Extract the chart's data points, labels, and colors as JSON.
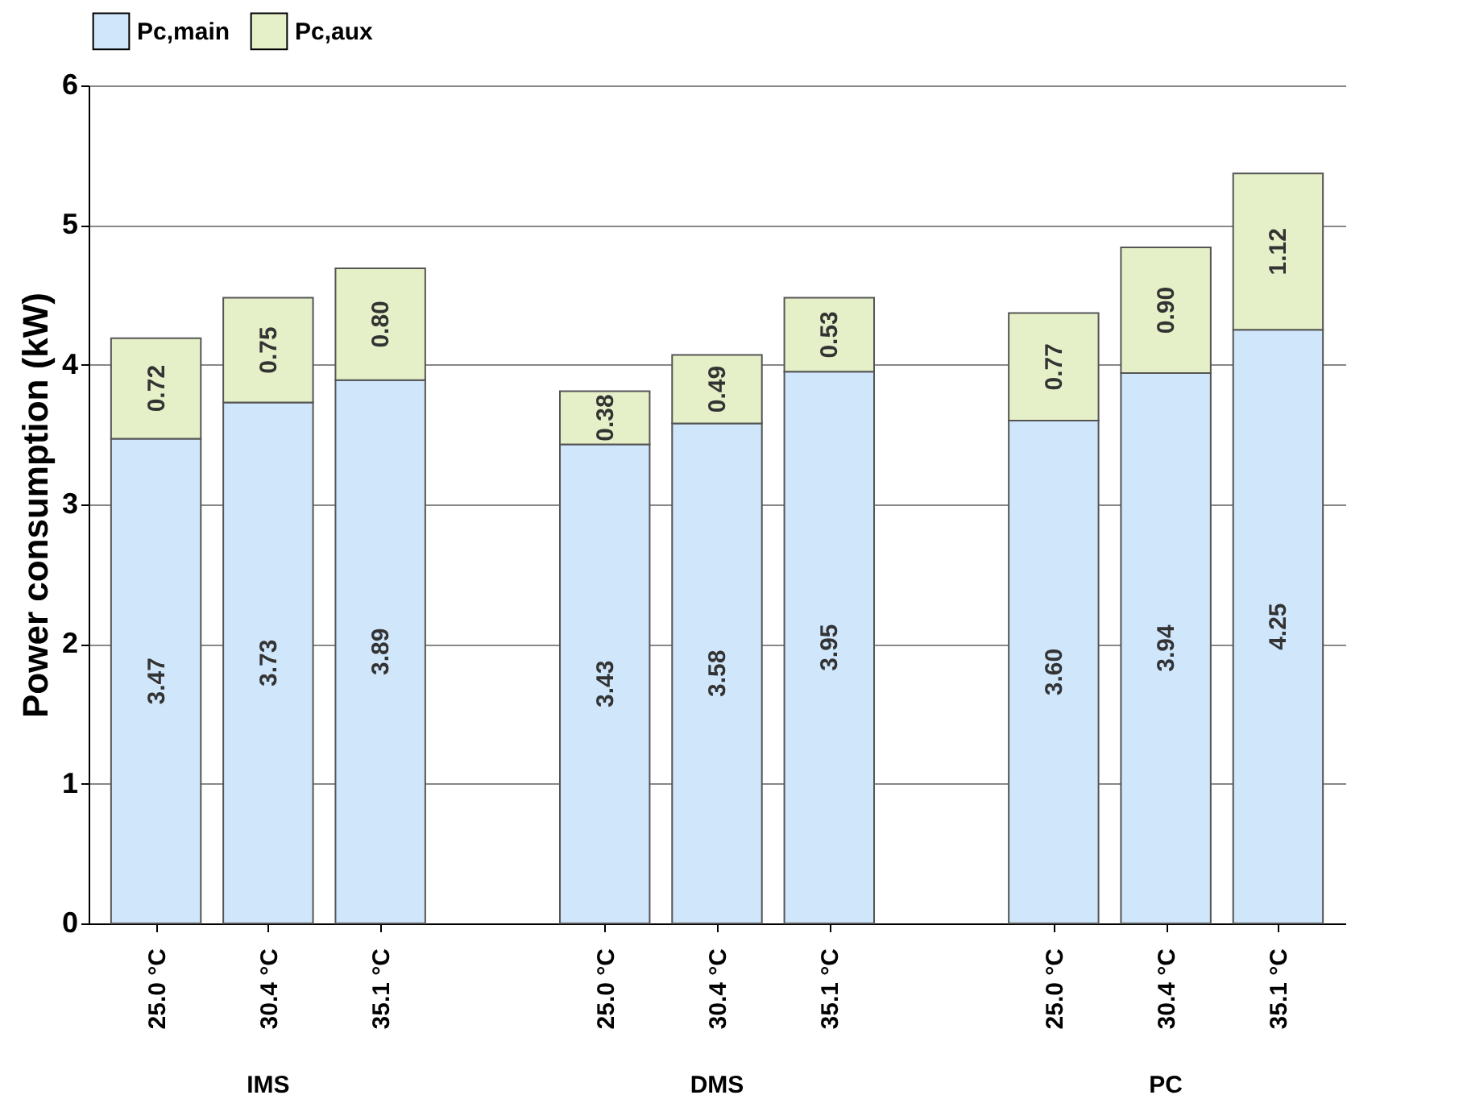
{
  "chart_data": {
    "type": "bar",
    "stacked": true,
    "ylabel": "Power consumption (kW)",
    "categories": [
      "25.0 °C",
      "30.4 °C",
      "35.1 °C",
      null,
      "25.0 °C",
      "30.4 °C",
      "35.1 °C",
      null,
      "25.0 °C",
      "30.4 °C",
      "35.1 °C"
    ],
    "annotations": [
      "IMS",
      "DMS",
      "PC"
    ],
    "series": [
      {
        "name": "Pc,main",
        "color": "#cfe6fb",
        "values": [
          3.47,
          3.73,
          3.89,
          null,
          3.43,
          3.58,
          3.95,
          null,
          3.6,
          3.94,
          4.25
        ],
        "value_labels": [
          "3.47",
          "3.73",
          "3.89",
          null,
          "3.43",
          "3.58",
          "3.95",
          null,
          "3.60",
          "3.94",
          "4.25"
        ]
      },
      {
        "name": "Pc,aux",
        "color": "#e6f0c8",
        "values": [
          0.72,
          0.75,
          0.8,
          null,
          0.38,
          0.49,
          0.53,
          null,
          0.77,
          0.9,
          1.12
        ],
        "value_labels": [
          "0.72",
          "0.75",
          "0.80",
          null,
          "0.38",
          "0.49",
          "0.53",
          null,
          "0.77",
          "0.90",
          "1.12"
        ]
      }
    ],
    "ylim": [
      0,
      6
    ],
    "yticks": [
      0,
      1,
      2,
      3,
      4,
      5,
      6
    ],
    "grid": "y",
    "legend": "top"
  }
}
